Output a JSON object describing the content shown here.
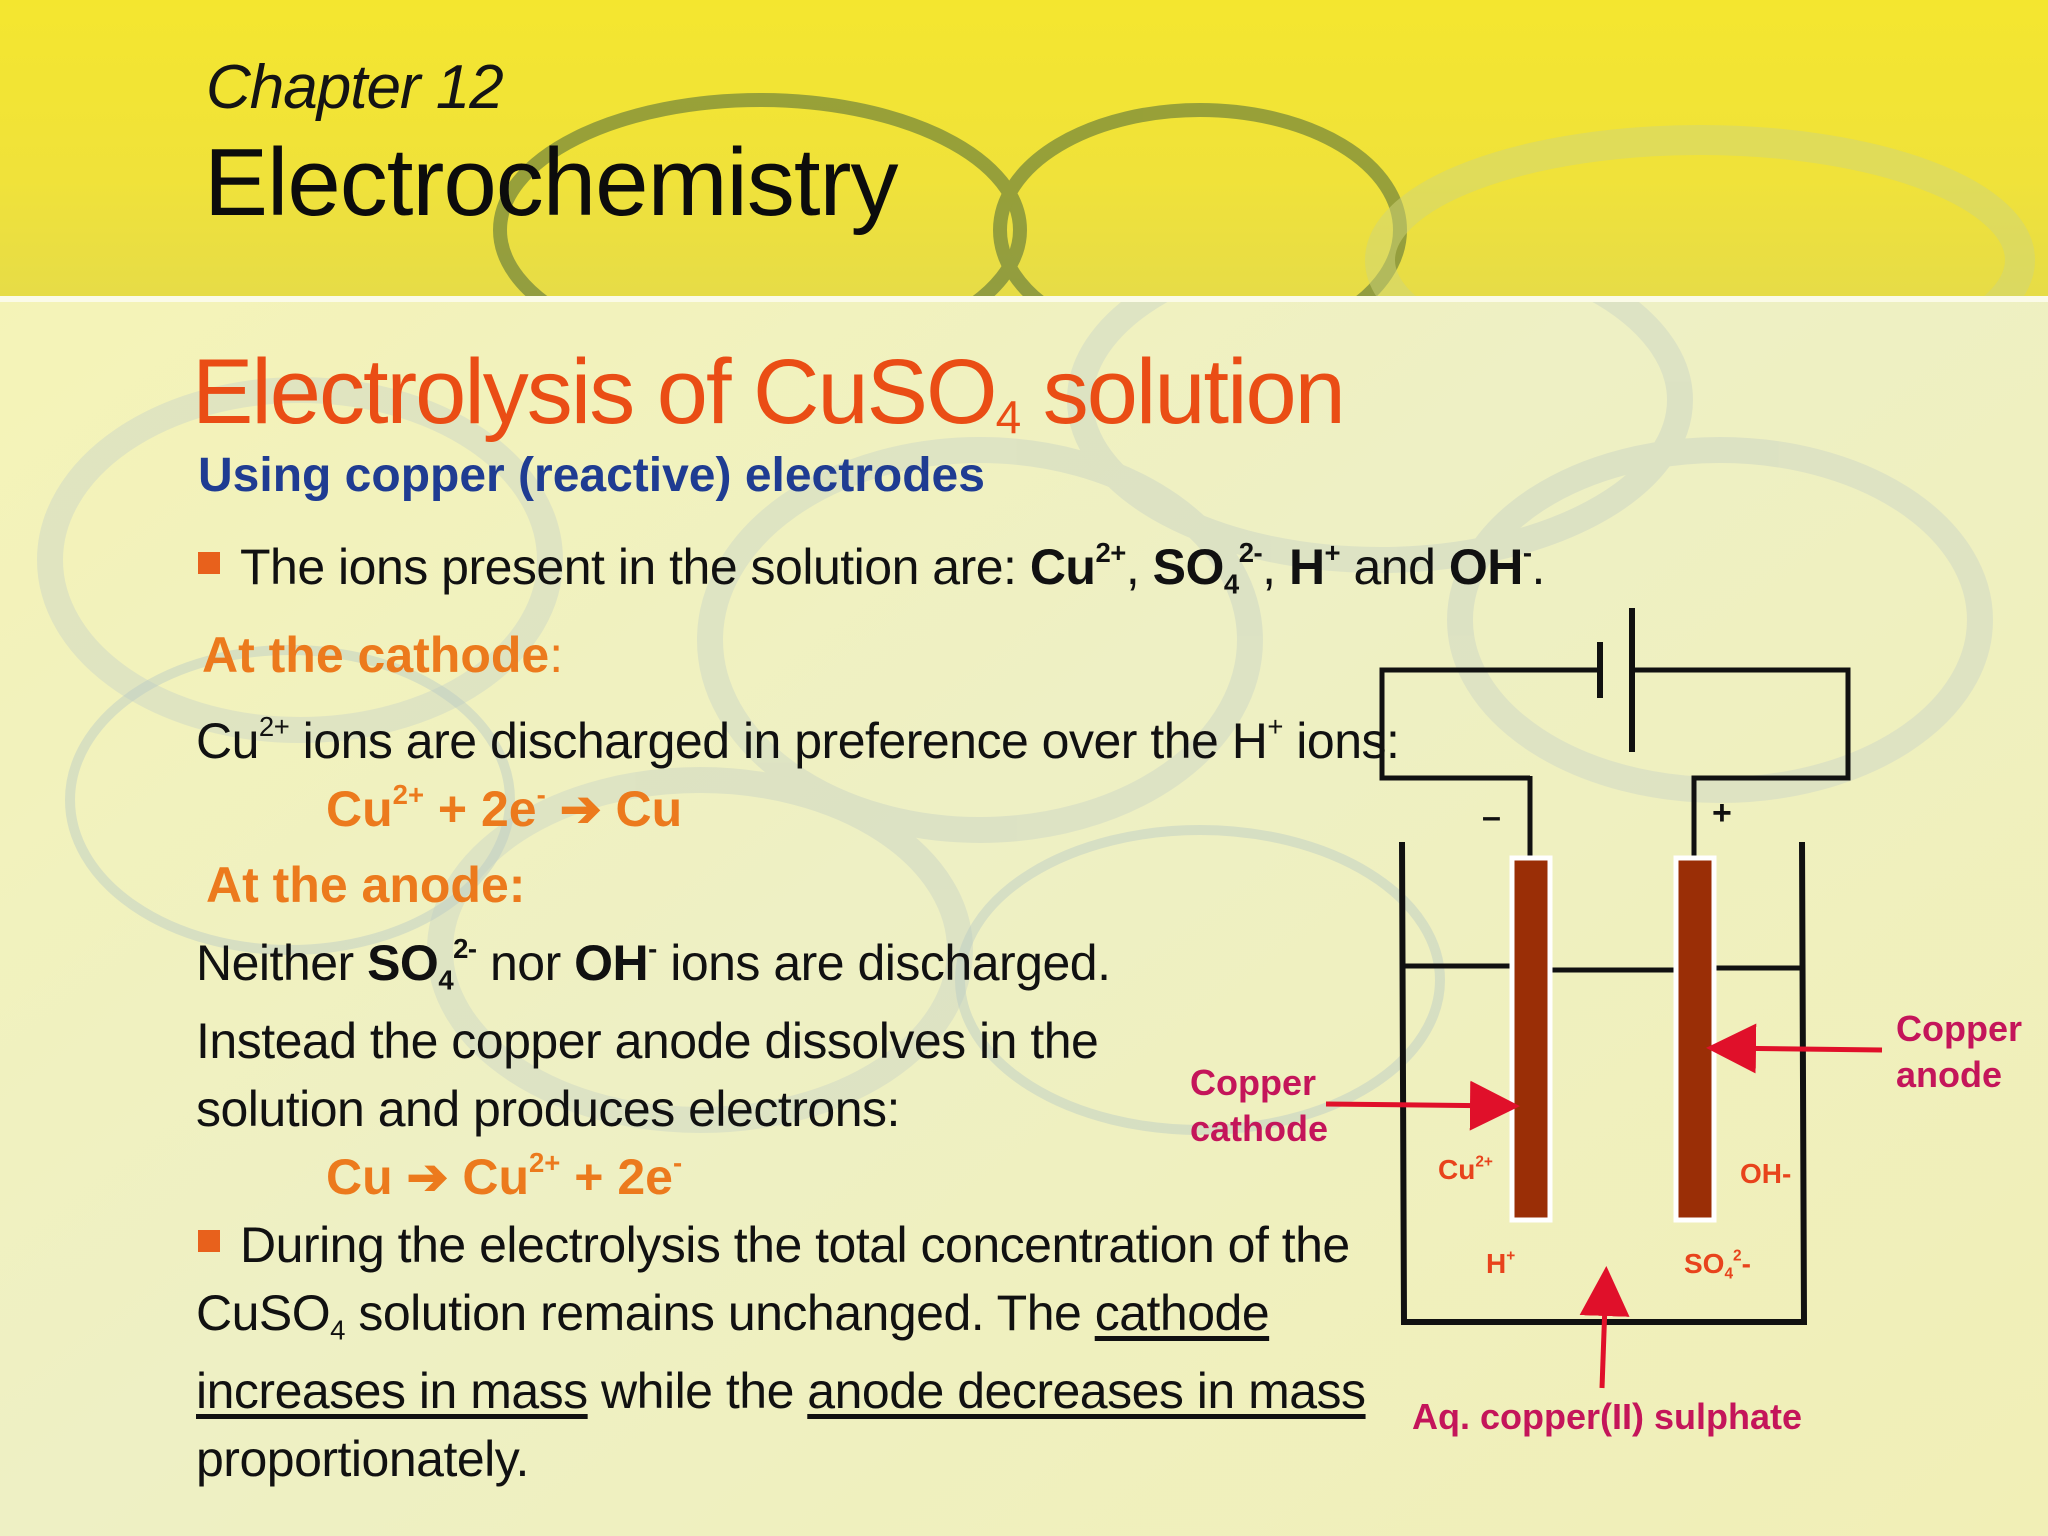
{
  "slide": {
    "chapter_label": "Chapter 12",
    "chapter_title": "Electrochemistry",
    "heading": {
      "prefix": "Electrolysis of CuSO",
      "subscript": "4",
      "suffix": " solution"
    },
    "subheading": "Using copper (reactive) electrodes",
    "bullet1": {
      "text": "The ions present in the solution are: ",
      "ion1": "Cu",
      "ion1_sup": "2+",
      "sep1": ", ",
      "ion2": "SO",
      "ion2_sub": "4",
      "ion2_sup": "2-",
      "sep2": ", ",
      "ion3": "H",
      "ion3_sup": "+",
      "sep3": " and ",
      "ion4": "OH",
      "ion4_sup": "-",
      "end": "."
    },
    "cathode": {
      "heading": "At the cathode",
      "heading_colon": ":",
      "line": {
        "a": "Cu",
        "a_sup": "2+",
        "b": " ions are discharged in preference over the H",
        "b_sup": "+",
        "c": " ions:"
      },
      "equation": {
        "a": "Cu",
        "a_sup": "2+",
        "b": " +  2e",
        "b_sup": "-",
        "arrow": " ➔ ",
        "c": "Cu"
      }
    },
    "anode": {
      "heading": "At the anode:",
      "line1": {
        "a": "Neither ",
        "b": "SO",
        "b_sub": "4",
        "b_sup": "2-",
        "c": " nor ",
        "d": "OH",
        "d_sup": "-",
        "e": " ions are discharged."
      },
      "line2": "Instead the copper anode dissolves in the",
      "line3": "solution and produces electrons:",
      "equation": {
        "a": "Cu",
        "arrow": " ➔ ",
        "b": "Cu",
        "b_sup": "2+",
        "c": "  + 2e",
        "c_sup": "-"
      }
    },
    "bullet2": {
      "line1": "During the electrolysis the total concentration of the",
      "line2_a": "CuSO",
      "line2_sub": "4",
      "line2_b": " solution remains unchanged. The ",
      "line2_u": "cathode",
      "line3_u1": "increases in mass",
      "line3_mid": " while the ",
      "line3_u2": "anode decreases in mass",
      "line4": "proportionately."
    }
  },
  "diagram": {
    "minus_sign": "–",
    "plus_sign": "+",
    "label_copper_cathode_1": "Copper",
    "label_copper_cathode_2": "cathode",
    "label_copper_anode_1": "Copper",
    "label_copper_anode_2": "anode",
    "ion_cu": "Cu",
    "ion_cu_sup": "2+",
    "ion_h": "H",
    "ion_h_sup": "+",
    "ion_oh": "OH-",
    "ion_so4": "SO",
    "ion_so4_sub": "4",
    "ion_so4_sup": "2",
    "ion_so4_end": "-",
    "label_solution": "Aq. copper(II) sulphate",
    "colors": {
      "electrode": "#9a2e06",
      "label": "#c4155a",
      "arrow": "#e0102a",
      "ion": "#e8431c"
    }
  }
}
